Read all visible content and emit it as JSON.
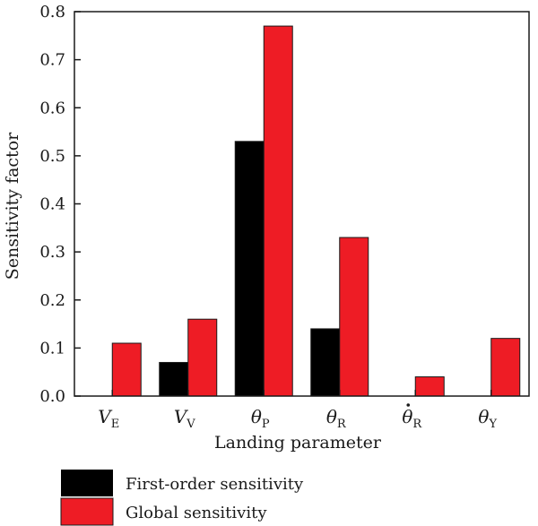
{
  "chart_data": {
    "type": "bar",
    "xlabel": "Landing parameter",
    "ylabel": "Sensitivity factor",
    "ylim": [
      0,
      0.8
    ],
    "yticks": [
      {
        "value": 0.0,
        "label": "0.0"
      },
      {
        "value": 0.1,
        "label": "0.1"
      },
      {
        "value": 0.2,
        "label": "0.2"
      },
      {
        "value": 0.3,
        "label": "0.3"
      },
      {
        "value": 0.4,
        "label": "0.4"
      },
      {
        "value": 0.5,
        "label": "0.5"
      },
      {
        "value": 0.6,
        "label": "0.6"
      },
      {
        "value": 0.7,
        "label": "0.7"
      },
      {
        "value": 0.8,
        "label": "0.8"
      }
    ],
    "categories": [
      {
        "symbol": "V",
        "sub": "E",
        "dot": false
      },
      {
        "symbol": "V",
        "sub": "V",
        "dot": false
      },
      {
        "symbol": "θ",
        "sub": "P",
        "dot": false
      },
      {
        "symbol": "θ",
        "sub": "R",
        "dot": false
      },
      {
        "symbol": "θ",
        "sub": "R",
        "dot": true
      },
      {
        "symbol": "θ",
        "sub": "Y",
        "dot": false
      }
    ],
    "series": [
      {
        "name": "First-order sensitivity",
        "color": "#000000",
        "values": [
          0,
          0.07,
          0.53,
          0.14,
          0,
          0
        ]
      },
      {
        "name": "Global sensitivity",
        "color": "#ee1c25",
        "values": [
          0.11,
          0.16,
          0.77,
          0.33,
          0.04,
          0.12
        ]
      }
    ],
    "legend_position": "bottom-left",
    "grid": false
  }
}
